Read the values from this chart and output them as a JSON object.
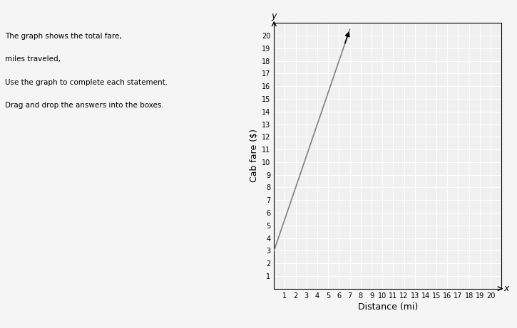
{
  "x_start": 0,
  "y_start": 3,
  "x_end": 7,
  "y_end": 20.5,
  "slope": 2.5,
  "intercept": 3,
  "xlim": [
    0,
    21
  ],
  "ylim": [
    0,
    21
  ],
  "xticks": [
    0,
    1,
    2,
    3,
    4,
    5,
    6,
    7,
    8,
    9,
    10,
    11,
    12,
    13,
    14,
    15,
    16,
    17,
    18,
    19,
    20
  ],
  "yticks": [
    0,
    1,
    2,
    3,
    4,
    5,
    6,
    7,
    8,
    9,
    10,
    11,
    12,
    13,
    14,
    15,
    16,
    17,
    18,
    19,
    20
  ],
  "xlabel": "Distance (mi)",
  "ylabel": "Cab fare ($)",
  "x_label_var": "x",
  "y_label_var": "y",
  "line_color": "#808080",
  "background_color": "#f0f0f0",
  "grid_color": "#ffffff",
  "arrow_color": "#000000",
  "tick_fontsize": 7,
  "label_fontsize": 8,
  "axis_label_fontsize": 9,
  "figure_bg": "#f5f5f5"
}
